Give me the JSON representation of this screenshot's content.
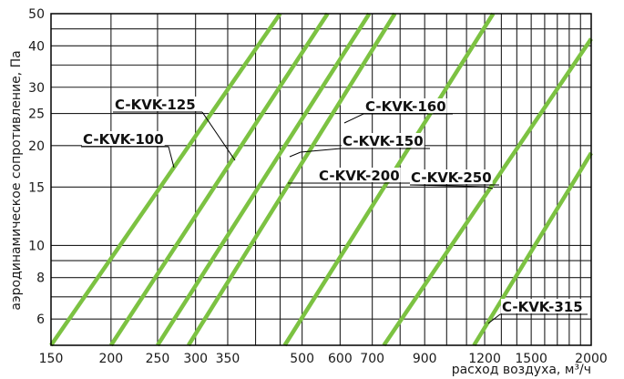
{
  "chart_data": {
    "type": "line",
    "xscale": "log",
    "yscale": "log",
    "xlabel": "расход воздуха, м³/ч",
    "ylabel": "аэродинамическое сопротивление, Па",
    "xlim": [
      150,
      2000
    ],
    "ylim": [
      5,
      50
    ],
    "xticks": [
      150,
      200,
      250,
      300,
      350,
      500,
      600,
      700,
      900,
      1200,
      1500,
      2000
    ],
    "yticks": [
      6,
      8,
      10,
      15,
      20,
      25,
      30,
      40,
      50
    ],
    "grid": true,
    "series_color": "#7cc242",
    "series": [
      {
        "name": "C-KVK-100",
        "x": [
          150,
          450
        ],
        "y": [
          5,
          50
        ]
      },
      {
        "name": "C-KVK-125",
        "x": [
          200,
          565
        ],
        "y": [
          5,
          50
        ]
      },
      {
        "name": "C-KVK-150",
        "x": [
          250,
          690
        ],
        "y": [
          5,
          50
        ]
      },
      {
        "name": "C-KVK-160",
        "x": [
          290,
          780
        ],
        "y": [
          5,
          50
        ]
      },
      {
        "name": "C-KVK-200",
        "x": [
          460,
          1250
        ],
        "y": [
          5,
          50
        ]
      },
      {
        "name": "C-KVK-250",
        "x": [
          740,
          2000
        ],
        "y": [
          5,
          42
        ]
      },
      {
        "name": "C-KVK-315",
        "x": [
          1140,
          2000
        ],
        "y": [
          5,
          19
        ]
      }
    ]
  }
}
